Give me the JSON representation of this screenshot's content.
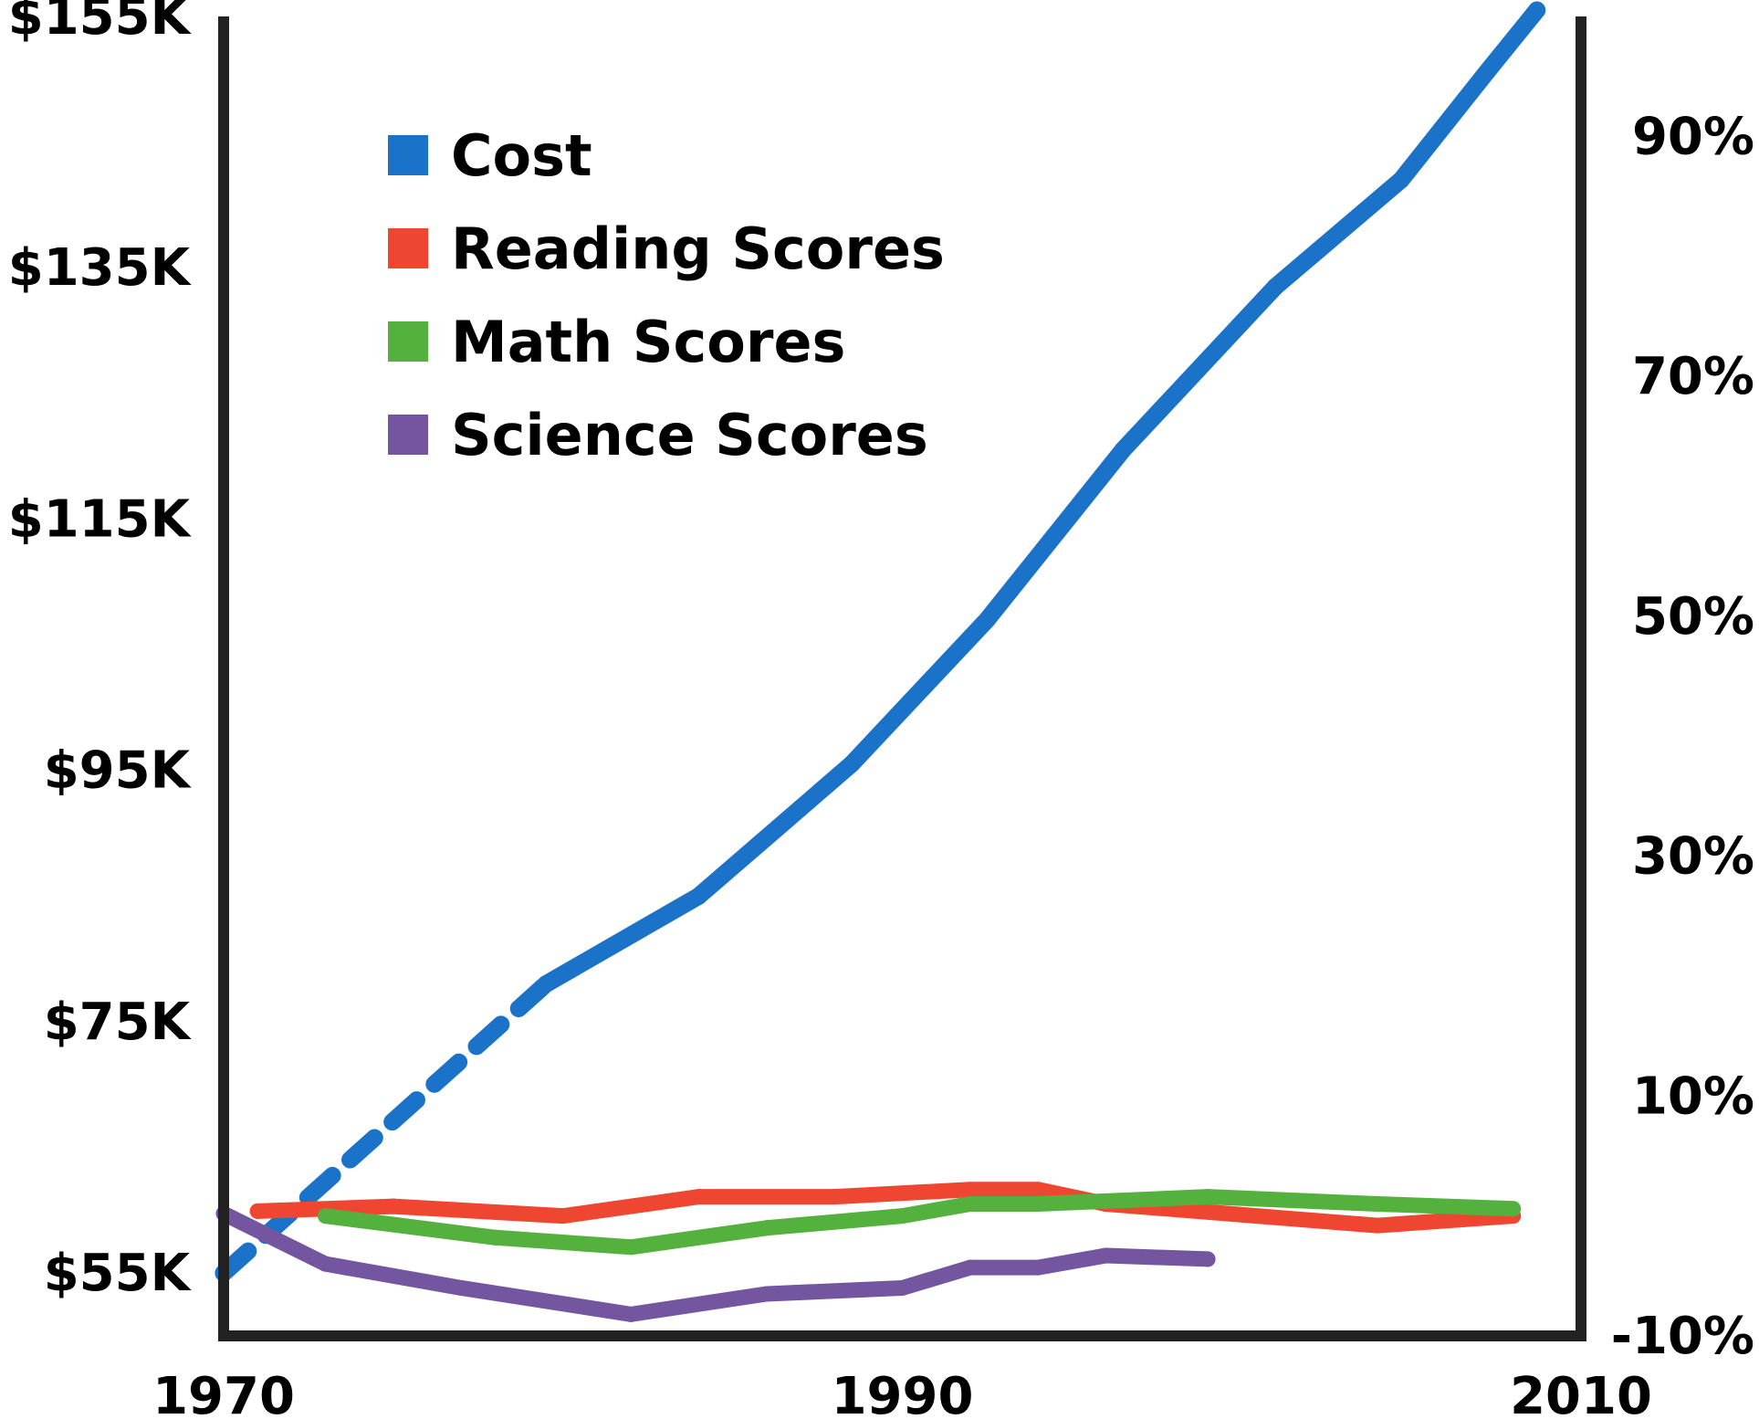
{
  "chart_data": {
    "type": "line",
    "title": "",
    "xlabel": "",
    "ylabel_left": "",
    "ylabel_right": "",
    "x_range": [
      1970,
      2010
    ],
    "x_ticks": [
      "1970",
      "1990",
      "2010"
    ],
    "x_tick_values": [
      1970,
      1990,
      2010
    ],
    "y_left_range": [
      50,
      155
    ],
    "y_left_ticks": [
      "$155K",
      "$135K",
      "$115K",
      "$95K",
      "$75K",
      "$55K"
    ],
    "y_left_tick_values": [
      155,
      135,
      115,
      95,
      75,
      55
    ],
    "y_right_range": [
      -10,
      100
    ],
    "y_right_ticks": [
      "90%",
      "70%",
      "50%",
      "30%",
      "10%",
      "-10%"
    ],
    "y_right_tick_values": [
      90,
      70,
      50,
      30,
      10,
      -10
    ],
    "grid": false,
    "legend_position": "top-left",
    "series": [
      {
        "name": "Cost",
        "color": "#1a73c8",
        "axis": "left",
        "dash_until_x": 1979.5,
        "points": [
          [
            1970,
            55
          ],
          [
            1979.5,
            78
          ],
          [
            1984,
            85
          ],
          [
            1988.5,
            95.5
          ],
          [
            1992.5,
            107
          ],
          [
            1996.5,
            120.5
          ],
          [
            2001,
            133.5
          ],
          [
            2004.7,
            142
          ],
          [
            2007.2,
            150.5
          ],
          [
            2008.7,
            155.5
          ]
        ]
      },
      {
        "name": "Reading Scores",
        "color": "#ef4631",
        "axis": "right",
        "points": [
          [
            1971,
            0.4
          ],
          [
            1975,
            0.8
          ],
          [
            1980,
            0
          ],
          [
            1984,
            1.6
          ],
          [
            1988,
            1.6
          ],
          [
            1992,
            2.2
          ],
          [
            1994,
            2.2
          ],
          [
            1996,
            1.0
          ],
          [
            2004,
            -0.8
          ],
          [
            2008,
            0
          ]
        ]
      },
      {
        "name": "Math Scores",
        "color": "#55b13e",
        "axis": "right",
        "points": [
          [
            1973,
            0
          ],
          [
            1978,
            -1.8
          ],
          [
            1982,
            -2.6
          ],
          [
            1986,
            -1.0
          ],
          [
            1990,
            0
          ],
          [
            1992,
            1.0
          ],
          [
            1994,
            1.0
          ],
          [
            1999,
            1.6
          ],
          [
            2004,
            1.0
          ],
          [
            2008,
            0.6
          ]
        ]
      },
      {
        "name": "Science Scores",
        "color": "#7456a0",
        "axis": "right",
        "points": [
          [
            1970,
            0.2
          ],
          [
            1973,
            -4.0
          ],
          [
            1977,
            -6.0
          ],
          [
            1982,
            -8.2
          ],
          [
            1986,
            -6.5
          ],
          [
            1990,
            -6.0
          ],
          [
            1992,
            -4.3
          ],
          [
            1994,
            -4.3
          ],
          [
            1996,
            -3.3
          ],
          [
            1999,
            -3.6
          ]
        ]
      }
    ]
  }
}
